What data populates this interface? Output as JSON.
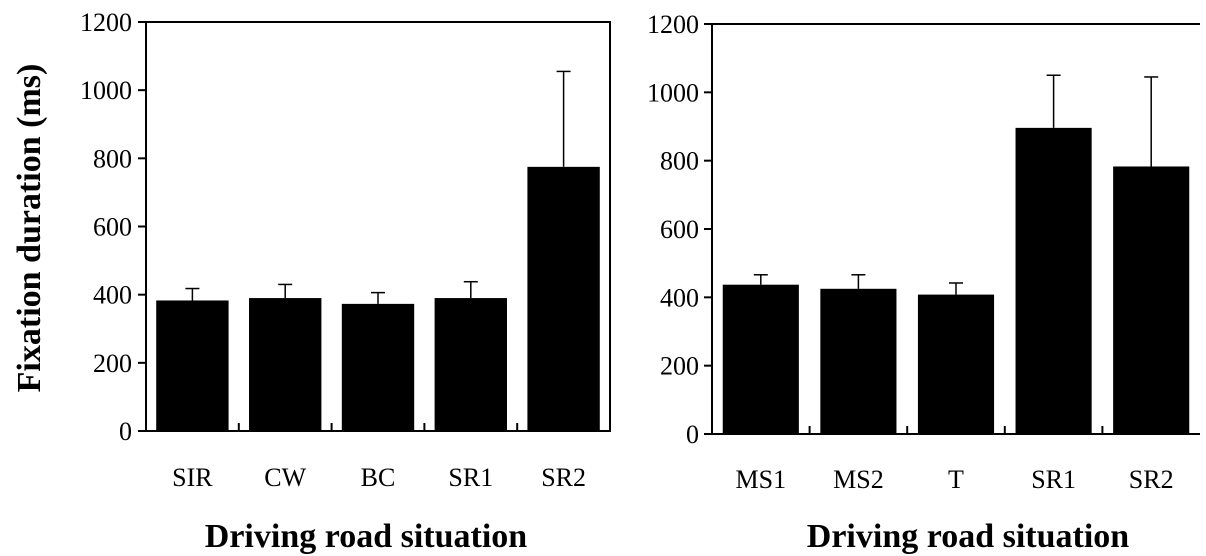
{
  "chart_data": [
    {
      "type": "bar",
      "categories": [
        "SIR",
        "CW",
        "BC",
        "SR1",
        "SR2"
      ],
      "values": [
        383,
        390,
        373,
        390,
        775
      ],
      "error_upper": [
        418,
        430,
        406,
        438,
        1055
      ],
      "ylim": [
        0,
        1200
      ],
      "yticks": [
        "0",
        "200",
        "400",
        "600",
        "800",
        "1000",
        "1200"
      ],
      "ylabel": "Fixation duration (ms)",
      "xlabel": "Driving road situation",
      "bar_color": "#000000"
    },
    {
      "type": "bar",
      "categories": [
        "MS1",
        "MS2",
        "T",
        "SR1",
        "SR2"
      ],
      "values": [
        437,
        425,
        408,
        896,
        783
      ],
      "error_upper": [
        466,
        466,
        442,
        1050,
        1045
      ],
      "ylim": [
        0,
        1200
      ],
      "yticks": [
        "0",
        "200",
        "400",
        "600",
        "800",
        "1000",
        "1200"
      ],
      "ylabel": "",
      "xlabel": "Driving road situation",
      "bar_color": "#000000"
    }
  ]
}
